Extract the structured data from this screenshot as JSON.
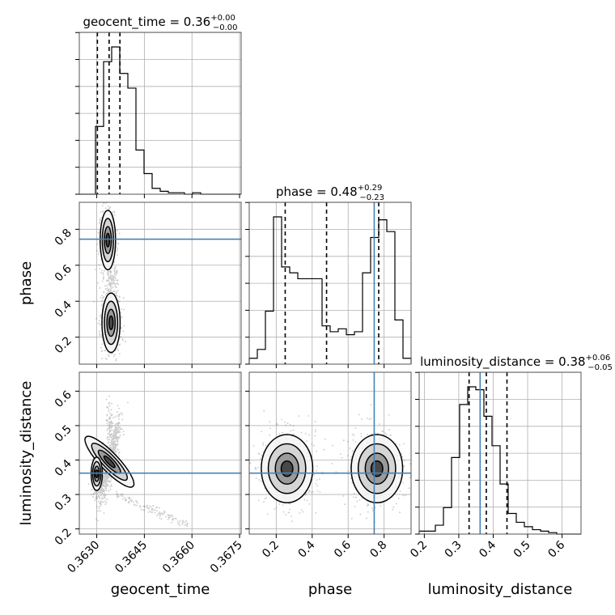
{
  "chart_data": {
    "type": "corner",
    "parameters": [
      {
        "name": "geocent_time",
        "xlabel": "geocent_time",
        "range": [
          0.36245,
          0.36755
        ],
        "ticks": [
          0.363,
          0.3645,
          0.366,
          0.3675
        ],
        "tick_labels": [
          "0.3630",
          "0.3645",
          "0.3660",
          "0.3675"
        ],
        "title": {
          "main": "geocent_time = 0.36",
          "sup": "+0.00",
          "sub": "−0.00"
        },
        "quantiles": [
          0.36302,
          0.36339,
          0.36373
        ],
        "truth": null,
        "hist": {
          "edges_start": 0.36245,
          "bin_width": 0.000255,
          "counts": [
            0,
            0,
            0.46,
            0.9,
            1.0,
            0.82,
            0.72,
            0.3,
            0.14,
            0.04,
            0.02,
            0.01,
            0.01,
            0,
            0.01,
            0,
            0,
            0,
            0,
            0
          ]
        }
      },
      {
        "name": "phase",
        "ylabel": "phase",
        "xlabel": "phase",
        "range": [
          0.05,
          0.95
        ],
        "ticks": [
          0.2,
          0.4,
          0.6,
          0.8
        ],
        "tick_labels": [
          "0.2",
          "0.4",
          "0.6",
          "0.8"
        ],
        "title": {
          "main": "phase = 0.48",
          "sup": "+0.29",
          "sub": "−0.23"
        },
        "quantiles": [
          0.25,
          0.48,
          0.77
        ],
        "truth": 0.745,
        "hist": {
          "edges_start": 0.05,
          "bin_width": 0.045,
          "counts": [
            0.04,
            0.1,
            0.36,
            1.0,
            0.66,
            0.62,
            0.58,
            0.58,
            0.58,
            0.26,
            0.22,
            0.24,
            0.2,
            0.22,
            0.62,
            0.86,
            0.98,
            0.9,
            0.3,
            0.04
          ]
        }
      },
      {
        "name": "luminosity_distance",
        "ylabel": "luminosity_distance",
        "xlabel": "luminosity_distance",
        "range": [
          0.185,
          0.655
        ],
        "ticks": [
          0.2,
          0.3,
          0.4,
          0.5,
          0.6
        ],
        "tick_labels": [
          "0.2",
          "0.3",
          "0.4",
          "0.5",
          "0.6"
        ],
        "title": {
          "main": "luminosity_distance = 0.38",
          "sup": "+0.06",
          "sub": "−0.05"
        },
        "quantiles": [
          0.33,
          0.38,
          0.44
        ],
        "truth": 0.362,
        "hist": {
          "edges_start": 0.185,
          "bin_width": 0.0235,
          "counts": [
            0.02,
            0.02,
            0.06,
            0.18,
            0.52,
            0.88,
            1.0,
            0.98,
            0.8,
            0.6,
            0.34,
            0.14,
            0.08,
            0.05,
            0.03,
            0.02,
            0.01,
            0,
            0,
            0
          ]
        }
      }
    ],
    "density_panels": [
      {
        "x": "geocent_time",
        "y": "phase",
        "truth_x": null,
        "truth_y": 0.745
      },
      {
        "x": "geocent_time",
        "y": "luminosity_distance",
        "truth_x": null,
        "truth_y": 0.362
      },
      {
        "x": "phase",
        "y": "luminosity_distance",
        "truth_x": 0.745,
        "truth_y": 0.362
      }
    ],
    "grid": true,
    "colors": {
      "truth": "#4682b4",
      "contour": "#000000",
      "quantile": "#000000",
      "grid": "#b0b0b0"
    }
  }
}
